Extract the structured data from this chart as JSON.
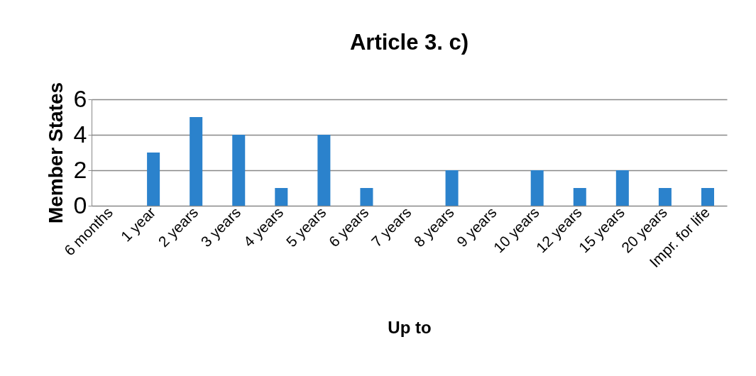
{
  "chart_data": {
    "type": "bar",
    "title": "Article 3. c)",
    "xlabel": "Up to",
    "ylabel": "Member States",
    "categories": [
      "6 months",
      "1 year",
      "2 years",
      "3 years",
      "4 years",
      "5 years",
      "6 years",
      "7 years",
      "8 years",
      "9 years",
      "10 years",
      "12 years",
      "15 years",
      "20 years",
      "Impr. for life"
    ],
    "values": [
      0,
      3,
      5,
      4,
      1,
      4,
      1,
      0,
      2,
      0,
      2,
      1,
      2,
      1,
      1
    ],
    "color": "#2b82cc",
    "ylim": [
      0,
      6
    ],
    "yticks": [
      0,
      2,
      4,
      6
    ],
    "grid": "y"
  }
}
